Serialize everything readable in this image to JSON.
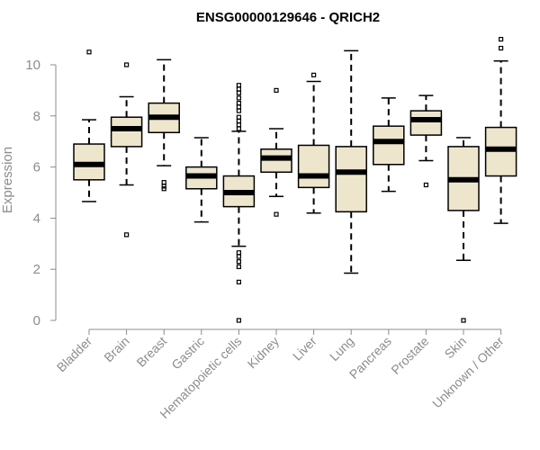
{
  "chart_data": {
    "type": "boxplot",
    "title": "ENSG00000129646 - QRICH2",
    "xlabel": "",
    "ylabel": "Expression",
    "ylim": [
      0,
      11
    ],
    "yticks": [
      0,
      2,
      4,
      6,
      8,
      10
    ],
    "grid": false,
    "box_color": "#ede6cd",
    "categories": [
      "Bladder",
      "Brain",
      "Breast",
      "Gastric",
      "Hematopoietic cells",
      "Kidney",
      "Liver",
      "Lung",
      "Pancreas",
      "Prostate",
      "Skin",
      "Unknown / Other"
    ],
    "series": [
      {
        "name": "Bladder",
        "whisker_low": 4.65,
        "q1": 5.5,
        "median": 6.1,
        "q3": 6.9,
        "whisker_high": 7.85,
        "outliers": [
          10.5
        ]
      },
      {
        "name": "Brain",
        "whisker_low": 5.3,
        "q1": 6.8,
        "median": 7.5,
        "q3": 7.95,
        "whisker_high": 8.75,
        "outliers": [
          10.0,
          3.35
        ]
      },
      {
        "name": "Breast",
        "whisker_low": 6.05,
        "q1": 7.35,
        "median": 7.95,
        "q3": 8.5,
        "whisker_high": 10.2,
        "outliers": [
          5.4,
          5.25,
          5.15
        ]
      },
      {
        "name": "Gastric",
        "whisker_low": 3.85,
        "q1": 5.15,
        "median": 5.65,
        "q3": 6.0,
        "whisker_high": 7.15,
        "outliers": []
      },
      {
        "name": "Hematopoietic cells",
        "whisker_low": 2.9,
        "q1": 4.45,
        "median": 5.0,
        "q3": 5.65,
        "whisker_high": 7.4,
        "outliers": [
          9.2,
          9.05,
          8.9,
          8.7,
          8.5,
          8.35,
          8.2,
          7.95,
          7.8,
          7.65,
          7.5,
          2.65,
          2.5,
          2.3,
          2.1,
          1.5,
          0.0
        ]
      },
      {
        "name": "Kidney",
        "whisker_low": 4.85,
        "q1": 5.8,
        "median": 6.35,
        "q3": 6.7,
        "whisker_high": 7.5,
        "outliers": [
          9.0,
          4.15
        ]
      },
      {
        "name": "Liver",
        "whisker_low": 4.2,
        "q1": 5.2,
        "median": 5.65,
        "q3": 6.85,
        "whisker_high": 9.35,
        "outliers": [
          9.6
        ]
      },
      {
        "name": "Lung",
        "whisker_low": 1.85,
        "q1": 4.25,
        "median": 5.8,
        "q3": 6.8,
        "whisker_high": 10.55,
        "outliers": []
      },
      {
        "name": "Pancreas",
        "whisker_low": 5.05,
        "q1": 6.1,
        "median": 7.0,
        "q3": 7.6,
        "whisker_high": 8.7,
        "outliers": []
      },
      {
        "name": "Prostate",
        "whisker_low": 6.25,
        "q1": 7.25,
        "median": 7.85,
        "q3": 8.2,
        "whisker_high": 8.8,
        "outliers": [
          5.3
        ]
      },
      {
        "name": "Skin",
        "whisker_low": 2.35,
        "q1": 4.3,
        "median": 5.5,
        "q3": 6.8,
        "whisker_high": 7.15,
        "outliers": [
          0.0
        ]
      },
      {
        "name": "Unknown / Other",
        "whisker_low": 3.8,
        "q1": 5.65,
        "median": 6.7,
        "q3": 7.55,
        "whisker_high": 10.15,
        "outliers": [
          11.0,
          10.65
        ]
      }
    ]
  }
}
